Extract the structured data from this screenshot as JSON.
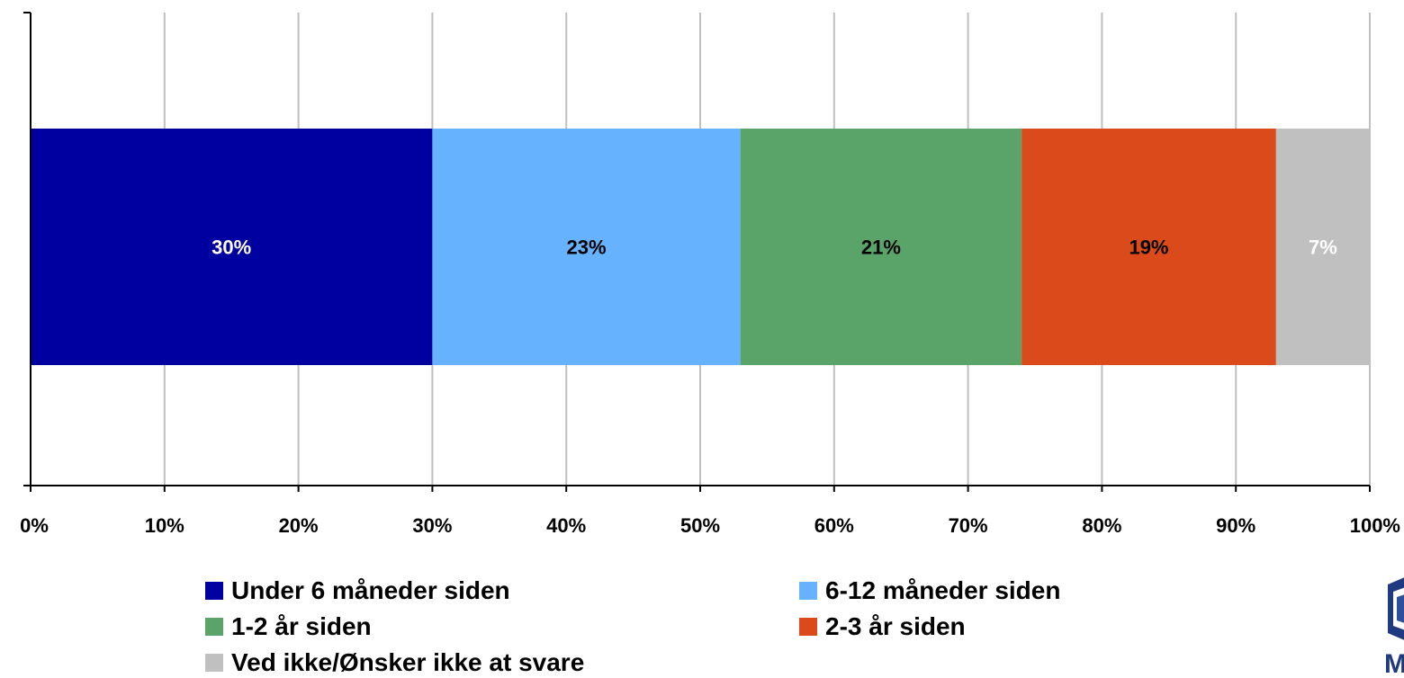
{
  "chart_data": {
    "type": "bar",
    "orientation": "horizontal",
    "stacked": true,
    "categories": [
      ""
    ],
    "series": [
      {
        "name": "Under 6 måneder siden",
        "values": [
          30
        ],
        "label": "30%",
        "color": "#0000A0",
        "label_color": "#FFFFFF"
      },
      {
        "name": "6-12 måneder siden",
        "values": [
          23
        ],
        "label": "23%",
        "color": "#66B2FF",
        "label_color": "#000000"
      },
      {
        "name": "1-2 år siden",
        "values": [
          21
        ],
        "label": "21%",
        "color": "#5AA469",
        "label_color": "#000000"
      },
      {
        "name": "2-3 år siden",
        "values": [
          19
        ],
        "label": "19%",
        "color": "#DB4A1A",
        "label_color": "#000000"
      },
      {
        "name": "Ved ikke/Ønsker ikke at svare",
        "values": [
          7
        ],
        "label": "7%",
        "color": "#C0C0C0",
        "label_color": "#FFFFFF"
      }
    ],
    "xlim": [
      0,
      100
    ],
    "xticks": [
      "0%",
      "10%",
      "20%",
      "30%",
      "40%",
      "50%",
      "60%",
      "70%",
      "80%",
      "90%",
      "100%"
    ],
    "grid": true,
    "legend_position": "bottom",
    "title": "",
    "xlabel": "",
    "ylabel": ""
  },
  "logo": {
    "letter": "M",
    "color": "#1F3A80"
  }
}
